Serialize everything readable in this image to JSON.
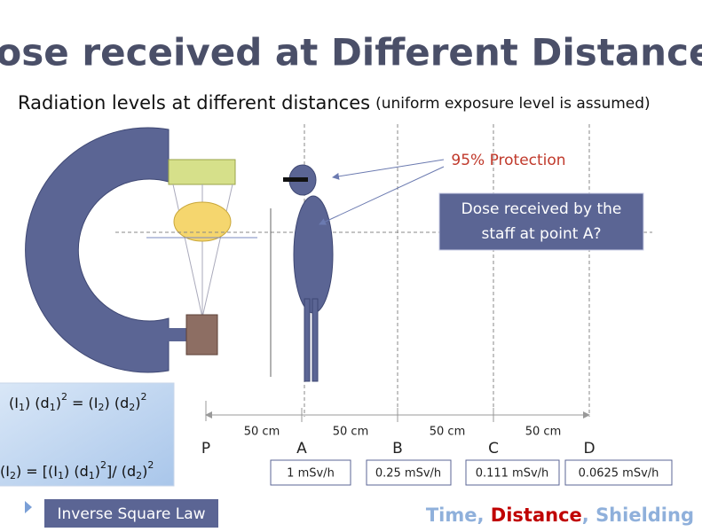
{
  "header": {
    "title": "Dose received at Different Distances",
    "subtitle": "Radiation levels at different distances",
    "subtitle_note": "(uniform exposure level is assumed)"
  },
  "callouts": {
    "protection": "95% Protection",
    "question_lines": [
      "Dose received by the",
      "staff at point A?"
    ]
  },
  "formulas": [
    [
      "(I",
      "1",
      ") (d",
      "1",
      ")",
      "2",
      " = (I",
      "2",
      ") (d",
      "2",
      ")",
      "2"
    ],
    [
      "(I",
      "2",
      ") = [(I",
      "1",
      ") (d",
      "1",
      ")",
      "2",
      "]/ (d",
      "2",
      ")",
      "2"
    ]
  ],
  "distances": [
    "50 cm",
    "50 cm",
    "50 cm",
    "50 cm"
  ],
  "points": [
    "P",
    "A",
    "B",
    "C",
    "D"
  ],
  "doses": [
    "1 mSv/h",
    "0.25 mSv/h",
    "0.111 mSv/h",
    "0.0625 mSv/h"
  ],
  "law": "Inverse Square Law",
  "footer": [
    "Time",
    ", ",
    "Distance",
    ", ",
    "Shielding"
  ]
}
